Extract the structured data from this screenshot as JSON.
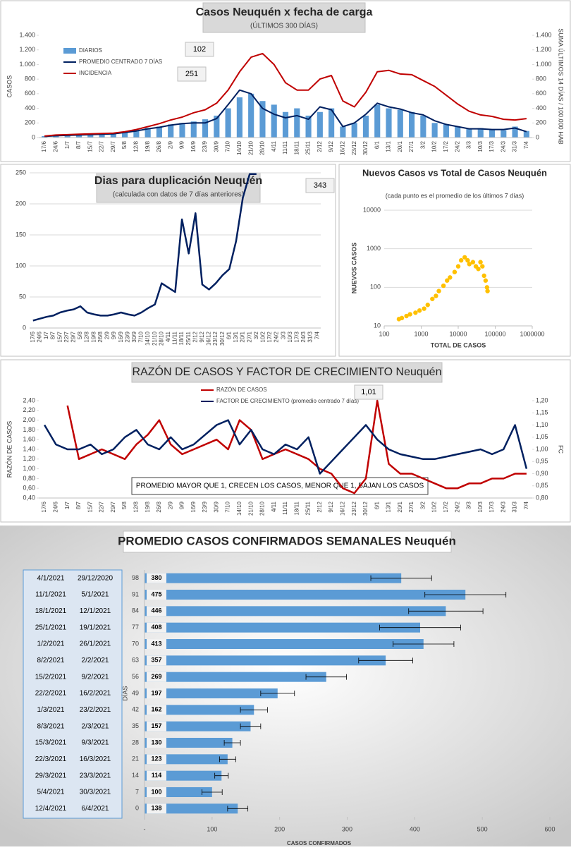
{
  "chart_data": [
    {
      "type": "bar",
      "title": "Casos Neuquén x fecha de carga",
      "subtitle": "(ÚLTIMOS 300 DÍAS)",
      "y_label": "CASOS",
      "y2_label": "SUMA ÚLTIMOS 14 DÍAS / 100.000 HAB",
      "annotations": [
        "102",
        "251"
      ],
      "categories": [
        "17/6",
        "24/6",
        "1/7",
        "8/7",
        "15/7",
        "22/7",
        "29/7",
        "5/8",
        "12/8",
        "19/8",
        "26/8",
        "2/9",
        "9/9",
        "16/9",
        "23/9",
        "30/9",
        "7/10",
        "14/10",
        "21/10",
        "28/10",
        "4/11",
        "11/11",
        "18/11",
        "25/11",
        "2/12",
        "9/12",
        "16/12",
        "23/12",
        "30/12",
        "6/1",
        "13/1",
        "20/1",
        "27/1",
        "3/2",
        "10/2",
        "17/2",
        "24/2",
        "3/3",
        "10/3",
        "17/3",
        "24/3",
        "31/3",
        "7/4"
      ],
      "series": [
        {
          "name": "DIARIOS",
          "type": "bar",
          "color": "#5b9bd5",
          "values": [
            20,
            30,
            30,
            40,
            40,
            50,
            60,
            80,
            100,
            130,
            150,
            180,
            200,
            220,
            250,
            300,
            400,
            550,
            600,
            500,
            450,
            350,
            400,
            300,
            350,
            400,
            150,
            200,
            300,
            450,
            400,
            380,
            350,
            300,
            200,
            180,
            150,
            120,
            130,
            110,
            100,
            150,
            90
          ]
        },
        {
          "name": "PROMEDIO CENTRADO 7 DÍAS",
          "type": "line",
          "color": "#002060",
          "values": [
            15,
            25,
            30,
            35,
            40,
            45,
            50,
            70,
            90,
            120,
            140,
            170,
            190,
            200,
            200,
            260,
            450,
            650,
            600,
            400,
            320,
            270,
            300,
            250,
            420,
            380,
            150,
            200,
            320,
            470,
            420,
            390,
            340,
            310,
            230,
            180,
            150,
            120,
            120,
            110,
            110,
            130,
            80
          ]
        },
        {
          "name": "INCIDENCIA",
          "type": "line",
          "axis": "y2",
          "color": "#c00000",
          "values": [
            20,
            35,
            40,
            45,
            50,
            55,
            60,
            80,
            110,
            150,
            190,
            240,
            280,
            340,
            380,
            470,
            650,
            900,
            1100,
            1150,
            1000,
            750,
            650,
            650,
            800,
            850,
            500,
            420,
            620,
            900,
            920,
            870,
            860,
            780,
            700,
            580,
            460,
            360,
            310,
            290,
            250,
            240,
            260
          ]
        }
      ],
      "ylim": [
        0,
        1400
      ],
      "yticks": [
        0,
        200,
        400,
        600,
        800,
        {
          "value": 1000,
          "label": "1.000"
        },
        {
          "value": 1200,
          "label": "1.200"
        },
        {
          "value": 1400,
          "label": "1.400"
        }
      ],
      "y2lim": [
        0,
        1400
      ],
      "y2ticks": [
        0,
        200,
        400,
        600,
        800,
        {
          "value": 1000,
          "label": "1.000"
        },
        {
          "value": 1200,
          "label": "1.200"
        },
        {
          "value": 1400,
          "label": "1.400"
        }
      ],
      "grid": false
    },
    {
      "type": "line",
      "title": "Dias para duplicación Neuquén",
      "subtitle": "(calculada con datos de 7 días anteriores)",
      "annotations": [
        "343"
      ],
      "categories": [
        "17/6",
        "24/6",
        "1/7",
        "8/7",
        "15/7",
        "22/7",
        "29/7",
        "5/8",
        "12/8",
        "19/8",
        "26/8",
        "2/9",
        "9/9",
        "16/9",
        "23/9",
        "30/9",
        "7/10",
        "14/10",
        "21/10",
        "28/10",
        "4/11",
        "11/11",
        "18/11",
        "25/11",
        "2/12",
        "9/12",
        "16/12",
        "23/12",
        "30/12",
        "6/1",
        "13/1",
        "20/1",
        "27/1",
        "3/2",
        "10/2",
        "17/2",
        "24/2",
        "3/3",
        "10/3",
        "17/3",
        "24/3",
        "31/3",
        "7/4"
      ],
      "series": [
        {
          "color": "#002060",
          "values": [
            12,
            15,
            18,
            20,
            25,
            28,
            30,
            35,
            25,
            22,
            20,
            20,
            22,
            25,
            22,
            20,
            25,
            32,
            38,
            72,
            65,
            58,
            175,
            120,
            185,
            70,
            62,
            72,
            85,
            95,
            140,
            210,
            248,
            248,
            null,
            null,
            null,
            null,
            null,
            null,
            null,
            null,
            null
          ]
        }
      ],
      "ylim": [
        0,
        250
      ],
      "yticks": [
        0,
        50,
        100,
        150,
        200,
        250
      ],
      "grid": true
    },
    {
      "type": "scatter",
      "title": "Nuevos Casos vs Total de Casos Neuquén",
      "subtitle": "(cada punto es el promedio de los últimos 7 días)",
      "x_label": "TOTAL DE CASOS",
      "y_label": "NUEVOS CASOS",
      "log_scale": true,
      "color": "#ffc000",
      "x": [
        250,
        300,
        400,
        500,
        700,
        900,
        1200,
        1500,
        2000,
        2500,
        3000,
        4000,
        5000,
        6000,
        8000,
        10000,
        12000,
        15000,
        18000,
        20000,
        25000,
        30000,
        35000,
        40000,
        45000,
        50000,
        55000,
        60000,
        62000
      ],
      "values": [
        15,
        16,
        18,
        20,
        22,
        25,
        28,
        35,
        50,
        60,
        80,
        110,
        150,
        180,
        250,
        350,
        500,
        600,
        500,
        400,
        450,
        350,
        300,
        450,
        350,
        200,
        150,
        100,
        80
      ],
      "xlim": [
        100,
        1000000
      ],
      "xticks": [
        100,
        1000,
        10000,
        100000,
        1000000
      ],
      "ylim": [
        10,
        10000
      ],
      "yticks": [
        10,
        100,
        1000,
        10000
      ],
      "grid": true
    },
    {
      "type": "line",
      "title": "RAZÓN DE CASOS Y FACTOR DE CRECIMIENTO Neuquén",
      "y_label": "RAZÓN DE CASOS",
      "y2_label": "FC",
      "annotations": [
        "1,01"
      ],
      "note": "PROMEDIO MAYOR QUE 1, CRECEN LOS CASOS, MENOR QUE 1, BAJAN LOS CASOS",
      "categories": [
        "17/6",
        "24/6",
        "1/7",
        "8/7",
        "15/7",
        "22/7",
        "29/7",
        "5/8",
        "12/8",
        "19/8",
        "26/8",
        "2/9",
        "9/9",
        "16/9",
        "23/9",
        "30/9",
        "7/10",
        "14/10",
        "21/10",
        "28/10",
        "4/11",
        "11/11",
        "18/11",
        "25/11",
        "2/12",
        "9/12",
        "16/12",
        "23/12",
        "30/12",
        "6/1",
        "13/1",
        "20/1",
        "27/1",
        "3/2",
        "10/2",
        "17/2",
        "24/2",
        "3/3",
        "10/3",
        "17/3",
        "24/3",
        "31/3",
        "7/4"
      ],
      "series": [
        {
          "name": "RAZÓN DE CASOS",
          "color": "#c00000",
          "values": [
            null,
            null,
            2.3,
            1.2,
            1.3,
            1.4,
            1.3,
            1.2,
            1.5,
            1.7,
            2.0,
            1.5,
            1.3,
            1.4,
            1.5,
            1.6,
            1.4,
            2.0,
            1.8,
            1.2,
            1.3,
            1.4,
            1.3,
            1.2,
            1.0,
            0.9,
            0.6,
            0.5,
            0.8,
            2.4,
            1.1,
            0.9,
            0.9,
            0.8,
            0.7,
            0.6,
            0.6,
            0.7,
            0.7,
            0.8,
            0.8,
            0.9,
            0.9
          ]
        },
        {
          "name": "FACTOR DE CRECIMIENTO (promedio centrado 7 días)",
          "axis": "y2",
          "color": "#002060",
          "values": [
            1.1,
            1.02,
            1.0,
            1.0,
            1.02,
            0.98,
            1.0,
            1.05,
            1.08,
            1.02,
            1.0,
            1.05,
            1.0,
            1.02,
            1.06,
            1.1,
            1.12,
            1.02,
            1.08,
            1.0,
            0.98,
            1.02,
            1.0,
            1.05,
            0.9,
            0.95,
            1.0,
            1.05,
            1.1,
            1.04,
            1.0,
            0.98,
            0.97,
            0.96,
            0.96,
            0.97,
            0.98,
            0.99,
            1.0,
            0.98,
            1.0,
            1.1,
            0.92
          ]
        }
      ],
      "ylim": [
        0.4,
        2.4
      ],
      "yticks": [
        {
          "value": 0.4,
          "label": "0,40"
        },
        {
          "value": 0.6,
          "label": "0,60"
        },
        {
          "value": 0.8,
          "label": "0,80"
        },
        {
          "value": 1.0,
          "label": "1,00"
        },
        {
          "value": 1.2,
          "label": "1,20"
        },
        {
          "value": 1.4,
          "label": "1,40"
        },
        {
          "value": 1.6,
          "label": "1,60"
        },
        {
          "value": 1.8,
          "label": "1,80"
        },
        {
          "value": 2.0,
          "label": "2,00"
        },
        {
          "value": 2.2,
          "label": "2,20"
        },
        {
          "value": 2.4,
          "label": "2,40"
        }
      ],
      "y2lim": [
        0.8,
        1.2
      ],
      "y2ticks": [
        {
          "value": 0.8,
          "label": "0,80"
        },
        {
          "value": 0.85,
          "label": "0,85"
        },
        {
          "value": 0.9,
          "label": "0,90"
        },
        {
          "value": 0.95,
          "label": "0,95"
        },
        {
          "value": 1.0,
          "label": "1,00"
        },
        {
          "value": 1.05,
          "label": "1,05"
        },
        {
          "value": 1.1,
          "label": "1,10"
        },
        {
          "value": 1.15,
          "label": "1,15"
        },
        {
          "value": 1.2,
          "label": "1,20"
        }
      ],
      "grid": false
    },
    {
      "type": "bar",
      "orientation": "horizontal",
      "title": "PROMEDIO CASOS CONFIRMADOS SEMANALES Neuquén",
      "x_label": "CASOS CONFIRMADOS",
      "y_label": "DÍAS",
      "color": "#5b9bd5",
      "periods": [
        [
          "4/1/2021",
          "29/12/2020"
        ],
        [
          "11/1/2021",
          "5/1/2021"
        ],
        [
          "18/1/2021",
          "12/1/2021"
        ],
        [
          "25/1/2021",
          "19/1/2021"
        ],
        [
          "1/2/2021",
          "26/1/2021"
        ],
        [
          "8/2/2021",
          "2/2/2021"
        ],
        [
          "15/2/2021",
          "9/2/2021"
        ],
        [
          "22/2/2021",
          "16/2/2021"
        ],
        [
          "1/3/2021",
          "23/2/2021"
        ],
        [
          "8/3/2021",
          "2/3/2021"
        ],
        [
          "15/3/2021",
          "9/3/2021"
        ],
        [
          "22/3/2021",
          "16/3/2021"
        ],
        [
          "29/3/2021",
          "23/3/2021"
        ],
        [
          "5/4/2021",
          "30/3/2021"
        ],
        [
          "12/4/2021",
          "6/4/2021"
        ]
      ],
      "categories": [
        98,
        91,
        84,
        77,
        70,
        63,
        56,
        49,
        42,
        35,
        28,
        21,
        14,
        7,
        0
      ],
      "values": [
        380,
        475,
        446,
        408,
        413,
        357,
        269,
        197,
        162,
        157,
        130,
        123,
        114,
        100,
        138
      ],
      "errors": [
        45,
        60,
        55,
        60,
        45,
        40,
        30,
        25,
        20,
        15,
        12,
        12,
        10,
        15,
        15
      ],
      "xlim": [
        0,
        600
      ],
      "xticks": [
        {
          "value": 0,
          "label": "-"
        },
        100,
        200,
        300,
        400,
        500,
        600
      ]
    }
  ]
}
